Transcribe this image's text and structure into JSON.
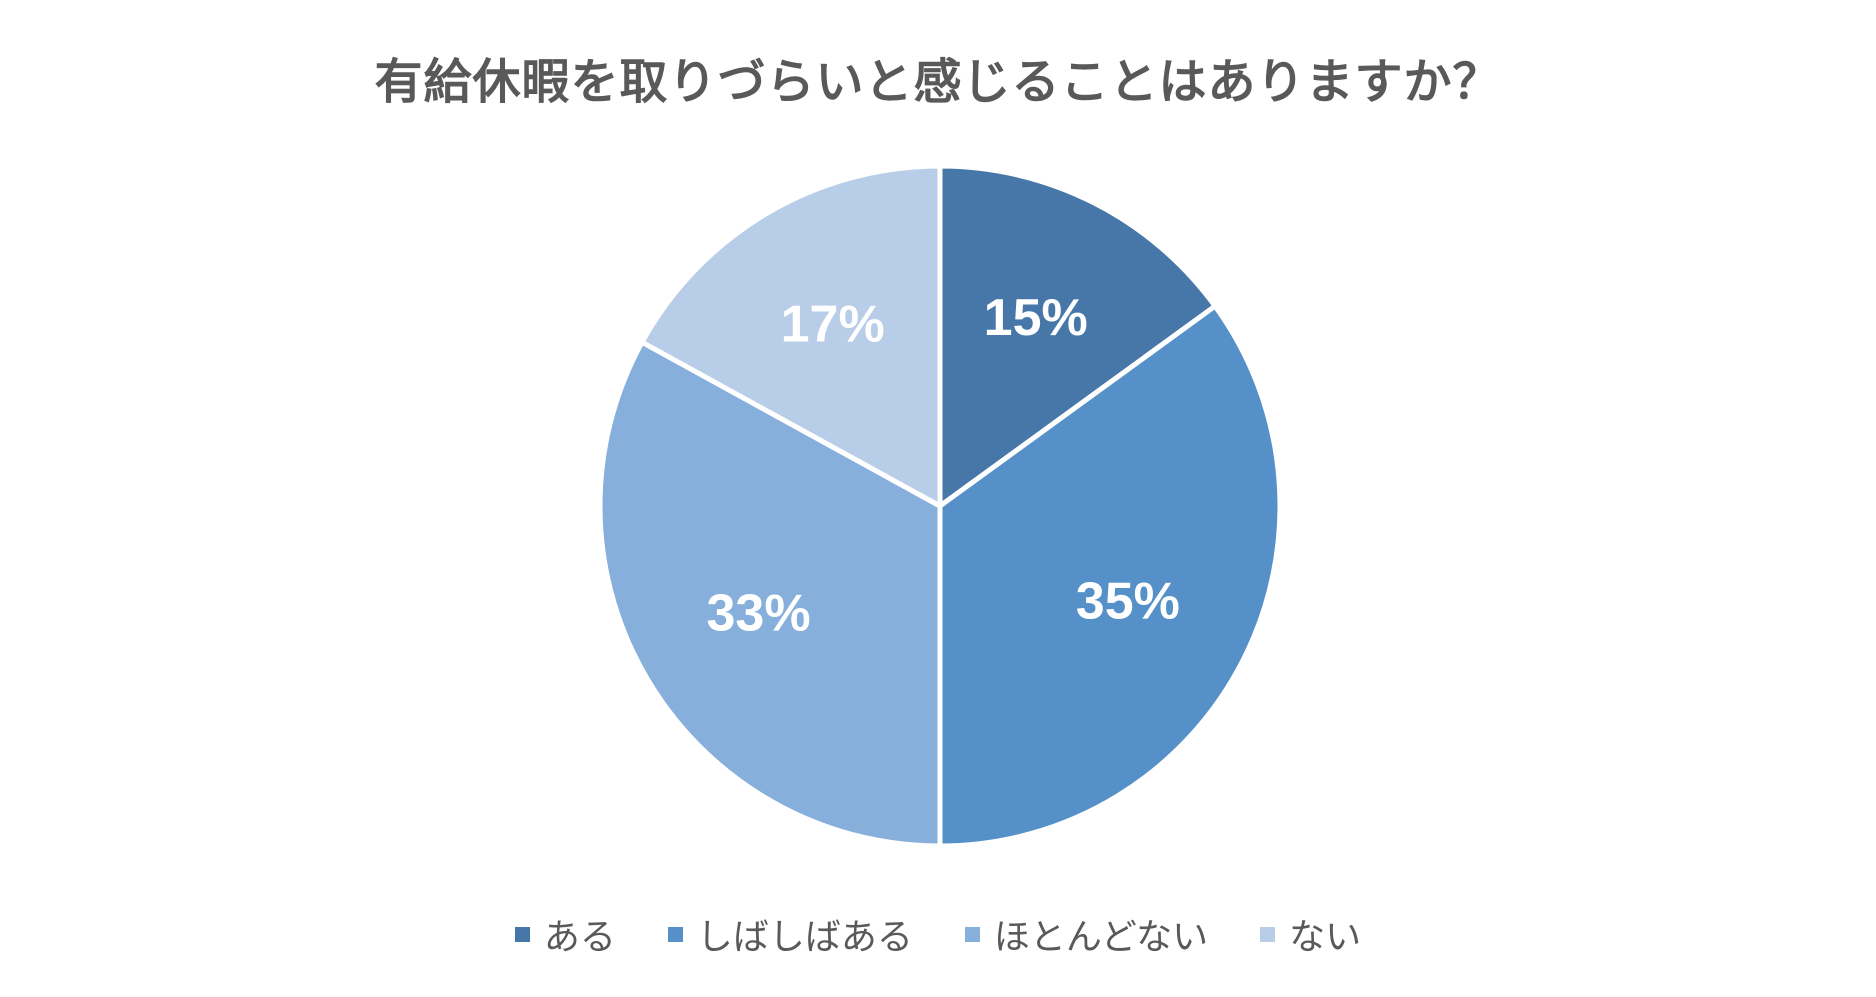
{
  "chart_data": {
    "type": "pie",
    "title": "有給休暇を取りづらいと感じることはありますか？",
    "categories": [
      "ある",
      "しばしばある",
      "ほとんどない",
      "ない"
    ],
    "values": [
      15,
      35,
      33,
      17
    ],
    "labels": [
      "15%",
      "35%",
      "33%",
      "17%"
    ],
    "colors": [
      "#4777A8",
      "#5591C8",
      "#87AFDC",
      "#B8CDE8"
    ],
    "label_color": "#FFFFFF",
    "start": "12 o'clock",
    "direction": "clockwise",
    "legend_position": "bottom"
  }
}
